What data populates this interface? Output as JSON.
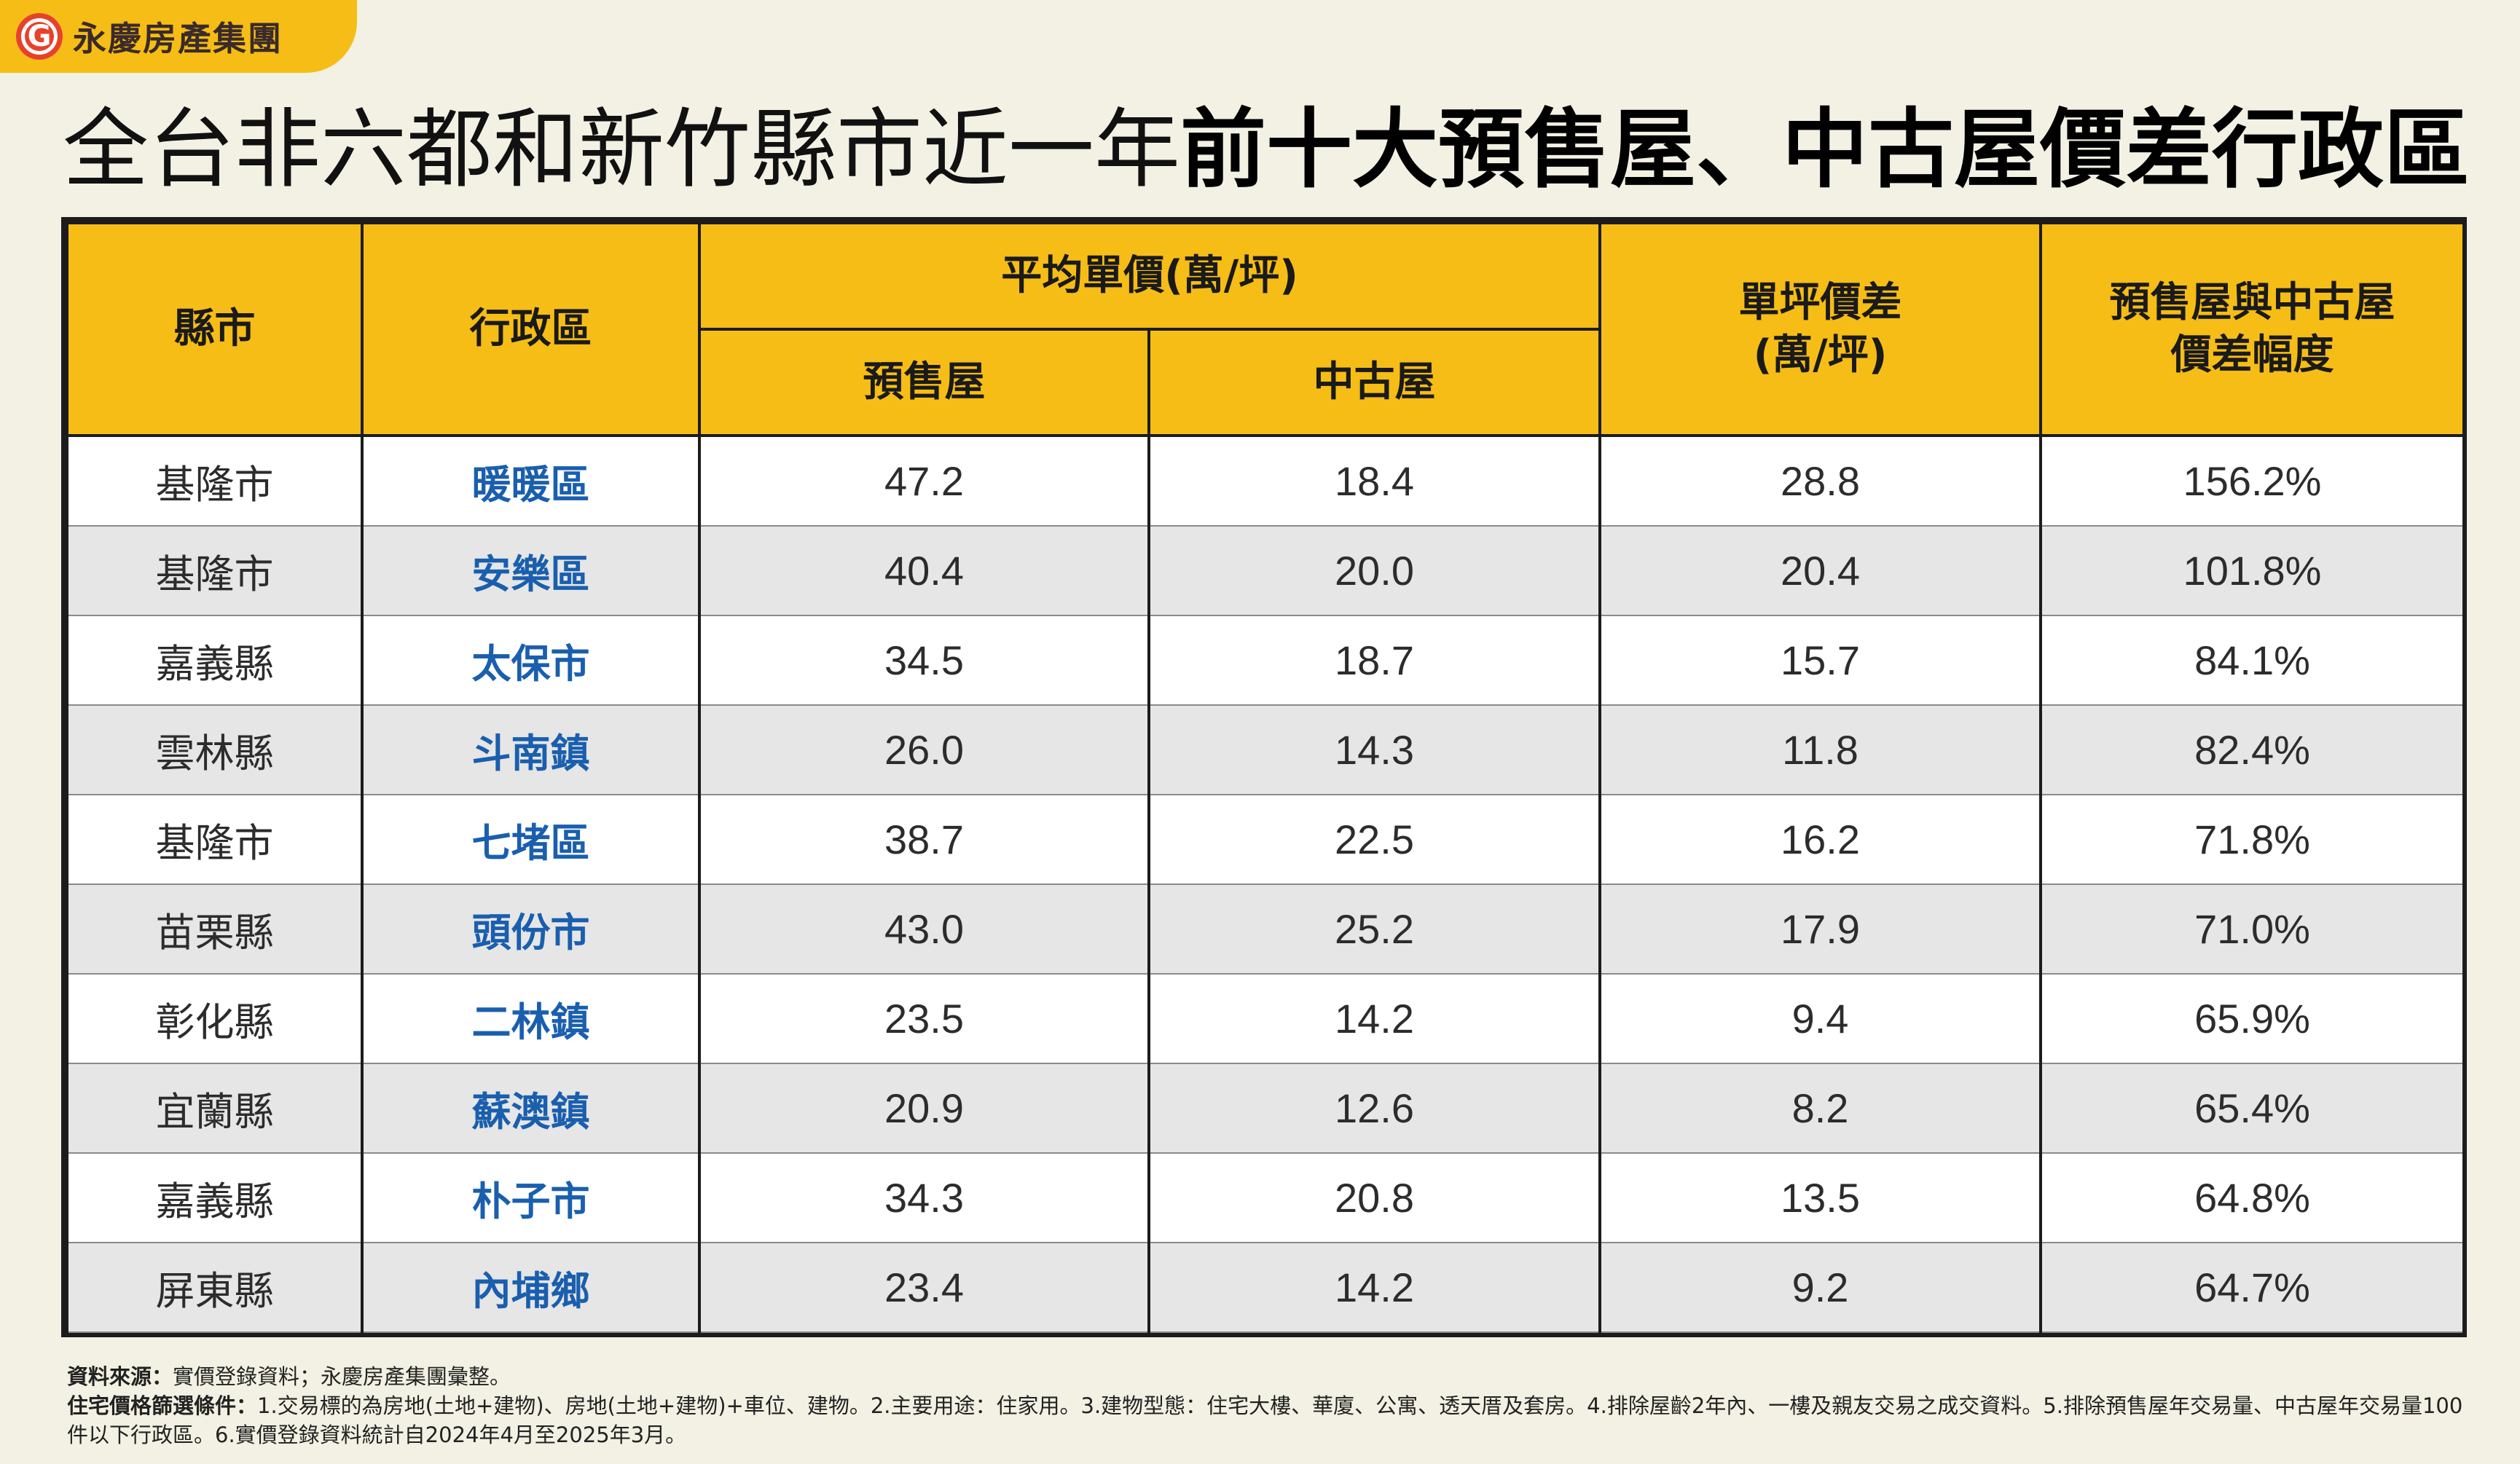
{
  "brand": {
    "name": "永慶房產集團",
    "logo_icon": "yungching-logo-icon",
    "tab_color": "#f6bd16",
    "logo_color": "#e8412a"
  },
  "title": {
    "light": "全台非六都和新竹縣市近一年",
    "bold": "前十大預售屋、中古屋價差行政區"
  },
  "table": {
    "headers": {
      "county": "縣市",
      "district": "行政區",
      "avg_price_group": "平均單價(萬/坪)",
      "presale": "預售屋",
      "used": "中古屋",
      "diff_line1": "單坪價差",
      "diff_line2": "(萬/坪)",
      "ratio_line1": "預售屋與中古屋",
      "ratio_line2": "價差幅度"
    },
    "rows": [
      {
        "county": "基隆市",
        "district": "暖暖區",
        "presale": "47.2",
        "used": "18.4",
        "diff": "28.8",
        "ratio": "156.2%"
      },
      {
        "county": "基隆市",
        "district": "安樂區",
        "presale": "40.4",
        "used": "20.0",
        "diff": "20.4",
        "ratio": "101.8%"
      },
      {
        "county": "嘉義縣",
        "district": "太保市",
        "presale": "34.5",
        "used": "18.7",
        "diff": "15.7",
        "ratio": "84.1%"
      },
      {
        "county": "雲林縣",
        "district": "斗南鎮",
        "presale": "26.0",
        "used": "14.3",
        "diff": "11.8",
        "ratio": "82.4%"
      },
      {
        "county": "基隆市",
        "district": "七堵區",
        "presale": "38.7",
        "used": "22.5",
        "diff": "16.2",
        "ratio": "71.8%"
      },
      {
        "county": "苗栗縣",
        "district": "頭份市",
        "presale": "43.0",
        "used": "25.2",
        "diff": "17.9",
        "ratio": "71.0%"
      },
      {
        "county": "彰化縣",
        "district": "二林鎮",
        "presale": "23.5",
        "used": "14.2",
        "diff": "9.4",
        "ratio": "65.9%"
      },
      {
        "county": "宜蘭縣",
        "district": "蘇澳鎮",
        "presale": "20.9",
        "used": "12.6",
        "diff": "8.2",
        "ratio": "65.4%"
      },
      {
        "county": "嘉義縣",
        "district": "朴子市",
        "presale": "34.3",
        "used": "20.8",
        "diff": "13.5",
        "ratio": "64.8%"
      },
      {
        "county": "屏東縣",
        "district": "內埔鄉",
        "presale": "23.4",
        "used": "14.2",
        "diff": "9.2",
        "ratio": "64.7%"
      }
    ]
  },
  "notes": {
    "source_label": "資料來源：",
    "source_text": "實價登錄資料；永慶房產集團彙整。",
    "criteria_label": "住宅價格篩選條件：",
    "criteria_text": "1.交易標的為房地(土地+建物)、房地(土地+建物)+車位、建物。2.主要用途：住家用。3.建物型態：住宅大樓、華廈、公寓、透天厝及套房。4.排除屋齡2年內、一樓及親友交易之成交資料。5.排除預售屋年交易量、中古屋年交易量100件以下行政區。6.實價登錄資料統計自2024年4月至2025年3月。"
  },
  "chart_data": {
    "type": "table",
    "title": "全台非六都和新竹縣市近一年前十大預售屋、中古屋價差行政區",
    "columns": [
      "縣市",
      "行政區",
      "預售屋",
      "中古屋",
      "單坪價差(萬/坪)",
      "預售屋與中古屋價差幅度"
    ],
    "group_header": "平均單價(萬/坪)",
    "rows": [
      [
        "基隆市",
        "暖暖區",
        47.2,
        18.4,
        28.8,
        "156.2%"
      ],
      [
        "基隆市",
        "安樂區",
        40.4,
        20.0,
        20.4,
        "101.8%"
      ],
      [
        "嘉義縣",
        "太保市",
        34.5,
        18.7,
        15.7,
        "84.1%"
      ],
      [
        "雲林縣",
        "斗南鎮",
        26.0,
        14.3,
        11.8,
        "82.4%"
      ],
      [
        "基隆市",
        "七堵區",
        38.7,
        22.5,
        16.2,
        "71.8%"
      ],
      [
        "苗栗縣",
        "頭份市",
        43.0,
        25.2,
        17.9,
        "71.0%"
      ],
      [
        "彰化縣",
        "二林鎮",
        23.5,
        14.2,
        9.4,
        "65.9%"
      ],
      [
        "宜蘭縣",
        "蘇澳鎮",
        20.9,
        12.6,
        8.2,
        "65.4%"
      ],
      [
        "嘉義縣",
        "朴子市",
        34.3,
        20.8,
        13.5,
        "64.8%"
      ],
      [
        "屏東縣",
        "內埔鄉",
        23.4,
        14.2,
        9.2,
        "64.7%"
      ]
    ]
  }
}
